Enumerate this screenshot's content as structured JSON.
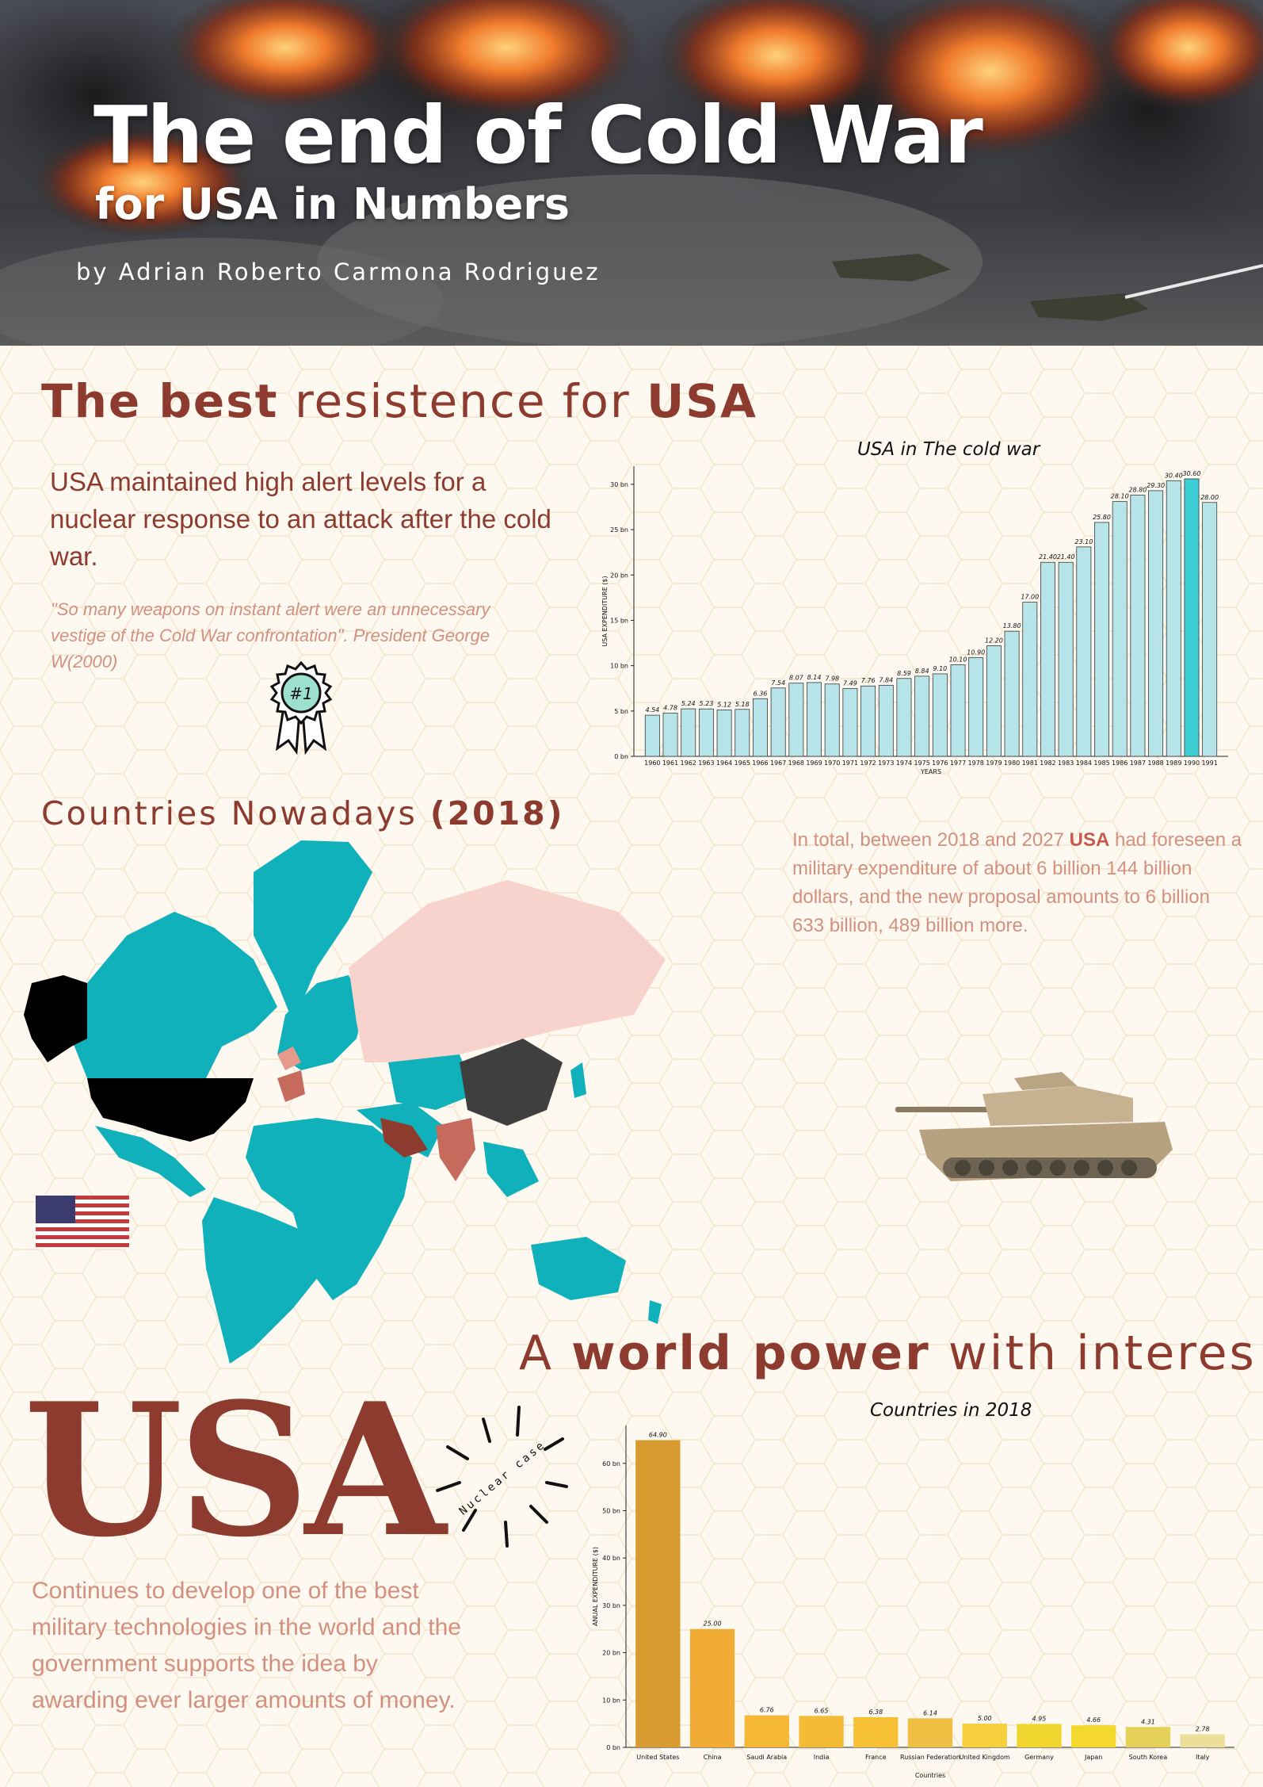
{
  "header": {
    "title": "The end of Cold War",
    "subtitle": "for USA in Numbers",
    "byline": "by Adrian Roberto Carmona Rodriguez"
  },
  "section1": {
    "heading_bold_1": "The best",
    "heading_light": "resistence for",
    "heading_bold_2": "USA",
    "lead": "USA maintained high alert levels for a nuclear response to an attack after the cold war.",
    "quote": "\"So many weapons on instant alert were an unnecessary vestige of the Cold War confrontation\". President George W(2000)",
    "badge_text": "#1"
  },
  "section2": {
    "heading_light": "Countries Nowadays",
    "heading_bold": "(2018)",
    "info_1": "In total, between 2018 and 2027",
    "info_bold": "USA",
    "info_2": "had foreseen a military expenditure of about 6 billion 144 billion dollars, and the new proposal amounts to 6 billion 633 billion, 489 billion more."
  },
  "section3": {
    "heading_light_1": "A",
    "heading_bold": "world power",
    "heading_light_2": "with interes",
    "big_text": "USA",
    "nuclear_text": "Nuclear case",
    "body": "Continues to develop one of the best military technologies in the world and the government supports the idea by awarding ever larger amounts of money."
  },
  "colors": {
    "accent": "#8e3b2f",
    "soft": "#d3907f",
    "teal": "#11b1bb",
    "bar_light": "#b7e4e8",
    "bar_highlight": "#3ccfd6",
    "russia": "#f8d3cd",
    "china": "#3f3f3f",
    "usa": "#000000"
  },
  "chart_data": [
    {
      "type": "bar",
      "title": "USA in The cold war",
      "xlabel": "YEARS",
      "ylabel": "USA EXPENDITURE ($)",
      "categories": [
        "1960",
        "1961",
        "1962",
        "1963",
        "1964",
        "1965",
        "1966",
        "1967",
        "1968",
        "1969",
        "1970",
        "1971",
        "1972",
        "1973",
        "1974",
        "1975",
        "1976",
        "1977",
        "1978",
        "1979",
        "1980",
        "1981",
        "1982",
        "1983",
        "1984",
        "1985",
        "1986",
        "1987",
        "1988",
        "1989",
        "1990",
        "1991"
      ],
      "values": [
        4.54,
        4.78,
        5.24,
        5.23,
        5.12,
        5.18,
        6.36,
        7.54,
        8.07,
        8.14,
        7.98,
        7.49,
        7.76,
        7.84,
        8.59,
        8.84,
        9.1,
        10.1,
        10.9,
        12.2,
        13.8,
        17.0,
        21.4,
        21.4,
        23.1,
        25.8,
        28.1,
        28.8,
        29.3,
        30.4,
        30.6,
        28.0
      ],
      "data_labels": [
        "4.54",
        "4.78",
        "5.24",
        "5.23",
        "5.12",
        "5.18",
        "6.36",
        "7.54",
        "8.07",
        "8.14",
        "7.98",
        "7.49",
        "7.76",
        "7.84",
        "8.59",
        "8.84",
        "9.10",
        "10.10",
        "10.90",
        "12.20",
        "13.80",
        "17.00",
        "21.40",
        "21.40",
        "23.10",
        "25.80",
        "28.10",
        "28.80",
        "29.30",
        "30.40",
        "30.60",
        "28.00"
      ],
      "highlight": "1990",
      "yticks": [
        "0 bn",
        "5 bn",
        "10 bn",
        "15 bn",
        "20 bn",
        "25 bn",
        "30 bn"
      ],
      "ylim": [
        0,
        32
      ]
    },
    {
      "type": "bar",
      "title": "Countries in 2018",
      "xlabel": "Countries",
      "ylabel": "ANUAL EXPENDITURE ($)",
      "categories": [
        "United States",
        "China",
        "Saudi Arabia",
        "India",
        "France",
        "Russian Federation",
        "United Kingdom",
        "Germany",
        "Japan",
        "South Korea",
        "Italy"
      ],
      "values": [
        64.9,
        25.0,
        6.76,
        6.65,
        6.38,
        6.14,
        5.0,
        4.95,
        4.66,
        4.31,
        2.78
      ],
      "data_labels": [
        "64.90",
        "25.00",
        "6.76",
        "6.65",
        "6.38",
        "6.14",
        "5.00",
        "4.95",
        "4.66",
        "4.31",
        "2.78"
      ],
      "bar_colors": [
        "#d89b30",
        "#f0ac35",
        "#f5b836",
        "#f3bb36",
        "#f6c136",
        "#f1be44",
        "#f5cf3c",
        "#efd52d",
        "#f4d82e",
        "#e5d058",
        "#ecdf9c"
      ],
      "yticks": [
        "0 bn",
        "10 bn",
        "20 bn",
        "30 bn",
        "40 bn",
        "50 bn",
        "60 bn"
      ],
      "ylim": [
        0,
        68
      ]
    }
  ]
}
